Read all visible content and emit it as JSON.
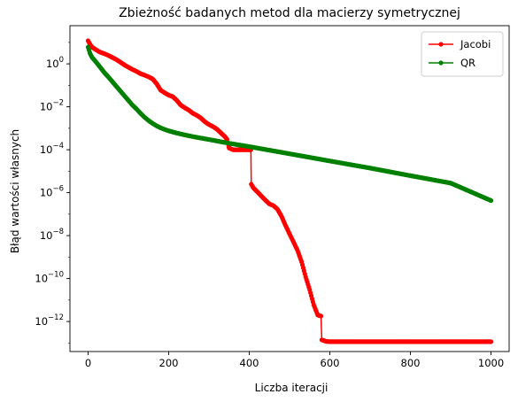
{
  "chart_data": {
    "type": "line",
    "title": "Zbieżność badanych metod dla macierzy symetrycznej",
    "xlabel": "Liczba iteracji",
    "ylabel": "Błąd wartości własnych",
    "xlim": [
      -45,
      1045
    ],
    "ylim": [
      4e-14,
      60
    ],
    "yscale": "log",
    "grid": false,
    "legend_position": "top-right",
    "xticks": [
      0,
      200,
      400,
      600,
      800,
      1000
    ],
    "xtick_labels": [
      "0",
      "200",
      "400",
      "600",
      "800",
      "1000"
    ],
    "yticks": [
      1e-12,
      1e-10,
      1e-08,
      1e-06,
      0.0001,
      0.01,
      1
    ],
    "ytick_labels": [
      {
        "base": "10",
        "exp": "−12"
      },
      {
        "base": "10",
        "exp": "−10"
      },
      {
        "base": "10",
        "exp": "−8"
      },
      {
        "base": "10",
        "exp": "−6"
      },
      {
        "base": "10",
        "exp": "−4"
      },
      {
        "base": "10",
        "exp": "−2"
      },
      {
        "base": "10",
        "exp": "0"
      }
    ],
    "series": [
      {
        "name": "Jacobi",
        "color": "#ff0000",
        "marker": "circle",
        "points": [
          [
            0,
            12
          ],
          [
            5,
            8
          ],
          [
            10,
            6
          ],
          [
            20,
            4.5
          ],
          [
            30,
            3.5
          ],
          [
            40,
            3
          ],
          [
            50,
            2.5
          ],
          [
            60,
            2
          ],
          [
            70,
            1.6
          ],
          [
            80,
            1.2
          ],
          [
            90,
            0.9
          ],
          [
            100,
            0.7
          ],
          [
            110,
            0.55
          ],
          [
            120,
            0.45
          ],
          [
            130,
            0.35
          ],
          [
            140,
            0.3
          ],
          [
            150,
            0.25
          ],
          [
            160,
            0.2
          ],
          [
            170,
            0.12
          ],
          [
            180,
            0.06
          ],
          [
            190,
            0.045
          ],
          [
            200,
            0.035
          ],
          [
            210,
            0.03
          ],
          [
            220,
            0.02
          ],
          [
            230,
            0.012
          ],
          [
            240,
            0.009
          ],
          [
            250,
            0.007
          ],
          [
            260,
            0.005
          ],
          [
            270,
            0.004
          ],
          [
            280,
            0.003
          ],
          [
            290,
            0.002
          ],
          [
            300,
            0.0015
          ],
          [
            310,
            0.0012
          ],
          [
            320,
            0.0009
          ],
          [
            330,
            0.0006
          ],
          [
            340,
            0.0004
          ],
          [
            345,
            0.0003
          ],
          [
            350,
            0.00012
          ],
          [
            360,
            0.0001
          ],
          [
            370,
            0.0001
          ],
          [
            380,
            0.0001
          ],
          [
            390,
            0.0001
          ],
          [
            400,
            0.0001
          ],
          [
            404,
            0.0001
          ],
          [
            405,
            2.5e-06
          ],
          [
            410,
            1.7e-06
          ],
          [
            420,
            1.1e-06
          ],
          [
            430,
            7e-07
          ],
          [
            440,
            4.5e-07
          ],
          [
            450,
            3e-07
          ],
          [
            460,
            2.5e-07
          ],
          [
            470,
            1.7e-07
          ],
          [
            480,
            8e-08
          ],
          [
            490,
            3e-08
          ],
          [
            500,
            1.2e-08
          ],
          [
            510,
            5e-09
          ],
          [
            520,
            2e-09
          ],
          [
            530,
            6e-10
          ],
          [
            540,
            1.2e-10
          ],
          [
            550,
            3e-11
          ],
          [
            560,
            6e-12
          ],
          [
            570,
            2e-12
          ],
          [
            578,
            1.8e-12
          ],
          [
            580,
            1.4e-13
          ],
          [
            590,
            1.2e-13
          ],
          [
            600,
            1.15e-13
          ],
          [
            700,
            1.15e-13
          ],
          [
            800,
            1.15e-13
          ],
          [
            900,
            1.15e-13
          ],
          [
            1000,
            1.15e-13
          ]
        ]
      },
      {
        "name": "QR",
        "color": "#008000",
        "marker": "circle",
        "points": [
          [
            0,
            6
          ],
          [
            5,
            3
          ],
          [
            10,
            2
          ],
          [
            20,
            1.2
          ],
          [
            30,
            0.7
          ],
          [
            40,
            0.4
          ],
          [
            50,
            0.25
          ],
          [
            60,
            0.15
          ],
          [
            70,
            0.09
          ],
          [
            80,
            0.055
          ],
          [
            90,
            0.033
          ],
          [
            100,
            0.02
          ],
          [
            110,
            0.012
          ],
          [
            120,
            0.008
          ],
          [
            130,
            0.005
          ],
          [
            140,
            0.0033
          ],
          [
            150,
            0.0023
          ],
          [
            160,
            0.0017
          ],
          [
            170,
            0.0013
          ],
          [
            180,
            0.00105
          ],
          [
            190,
            0.00088
          ],
          [
            200,
            0.00076
          ],
          [
            220,
            0.0006
          ],
          [
            240,
            0.00049
          ],
          [
            260,
            0.00041
          ],
          [
            280,
            0.00035
          ],
          [
            300,
            0.0003
          ],
          [
            350,
            0.0002
          ],
          [
            400,
            0.00014
          ],
          [
            500,
            6.5e-05
          ],
          [
            600,
            3e-05
          ],
          [
            700,
            1.4e-05
          ],
          [
            800,
            6.2e-06
          ],
          [
            900,
            2.8e-06
          ],
          [
            1000,
            4.3e-07
          ]
        ]
      }
    ]
  }
}
